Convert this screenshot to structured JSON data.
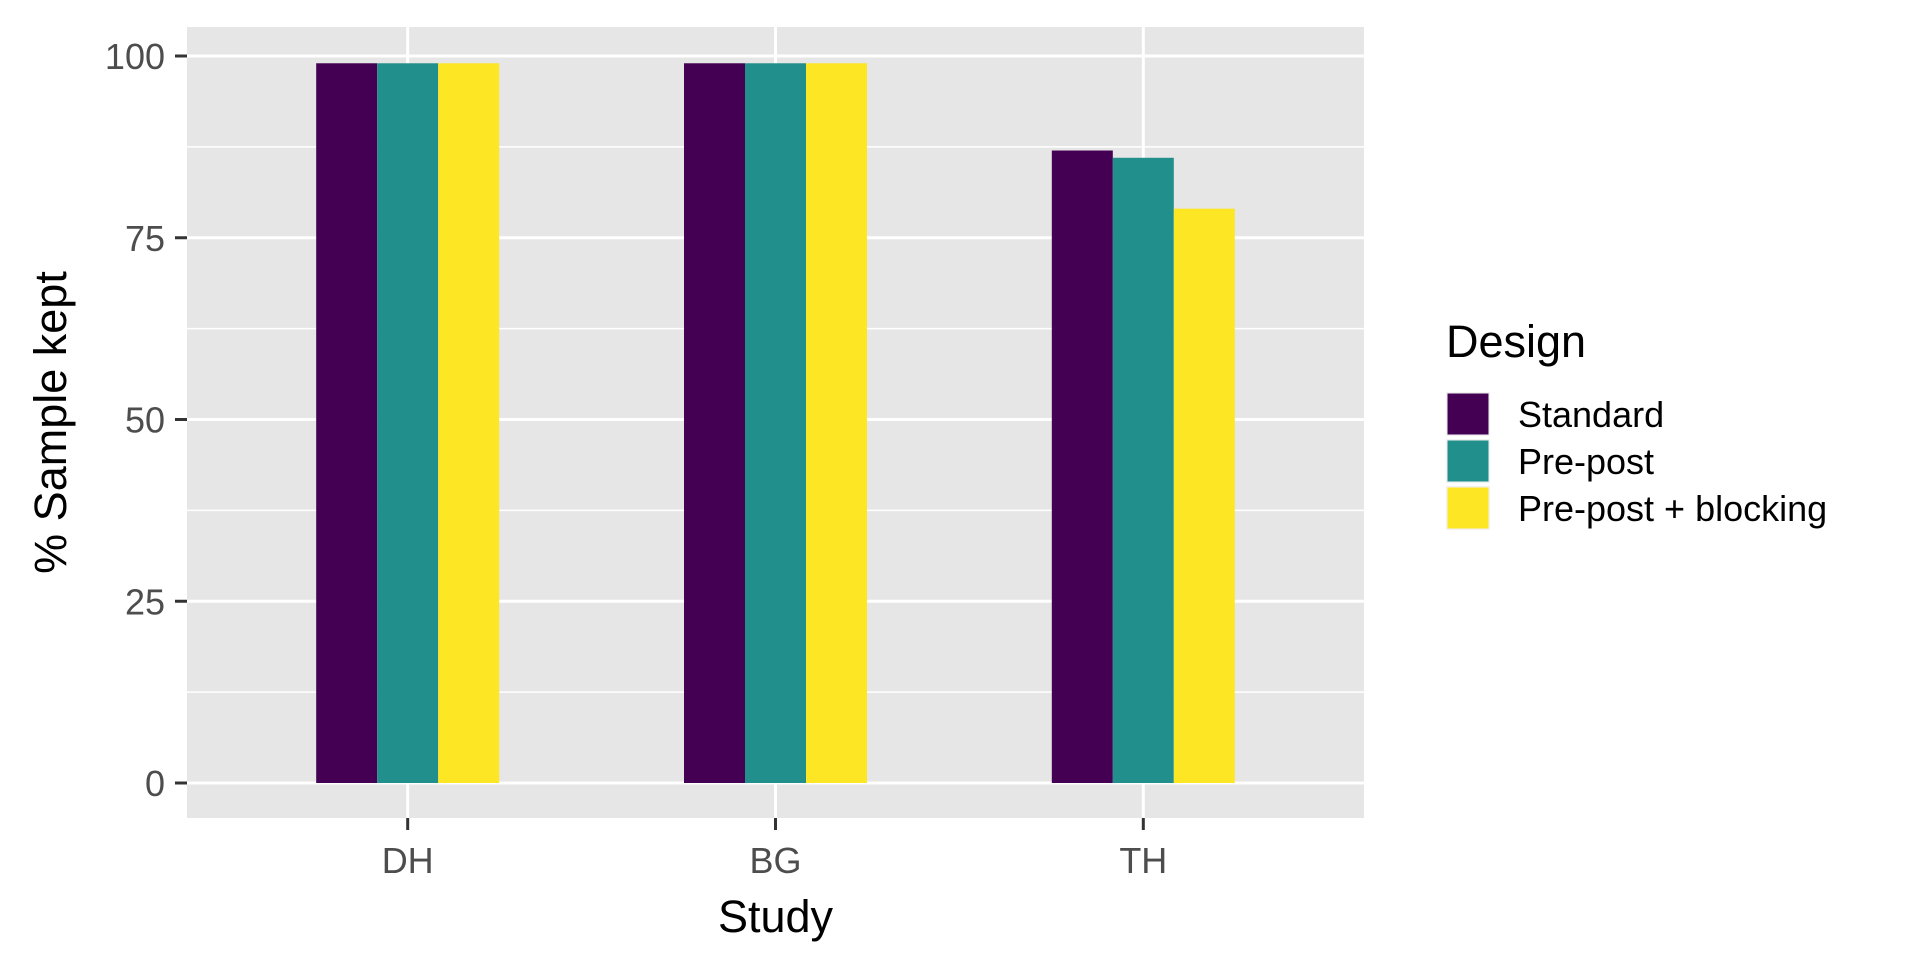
{
  "chart_data": {
    "type": "bar",
    "xlabel": "Study",
    "ylabel": "% Sample kept",
    "categories": [
      "DH",
      "BG",
      "TH"
    ],
    "ylim": [
      -4.6,
      104
    ],
    "yticks": [
      0,
      25,
      50,
      75,
      100
    ],
    "ytick_labels": [
      "0",
      "25",
      "50",
      "75",
      "100"
    ],
    "grid": true,
    "legend": {
      "title": "Design",
      "placement": "right"
    },
    "series": [
      {
        "name": "Standard",
        "color": "#440154",
        "values": [
          99,
          99,
          87
        ]
      },
      {
        "name": "Pre-post",
        "color": "#21908C",
        "values": [
          99,
          99,
          86
        ]
      },
      {
        "name": "Pre-post + blocking",
        "color": "#FDE725",
        "values": [
          99,
          99,
          79
        ]
      }
    ]
  }
}
